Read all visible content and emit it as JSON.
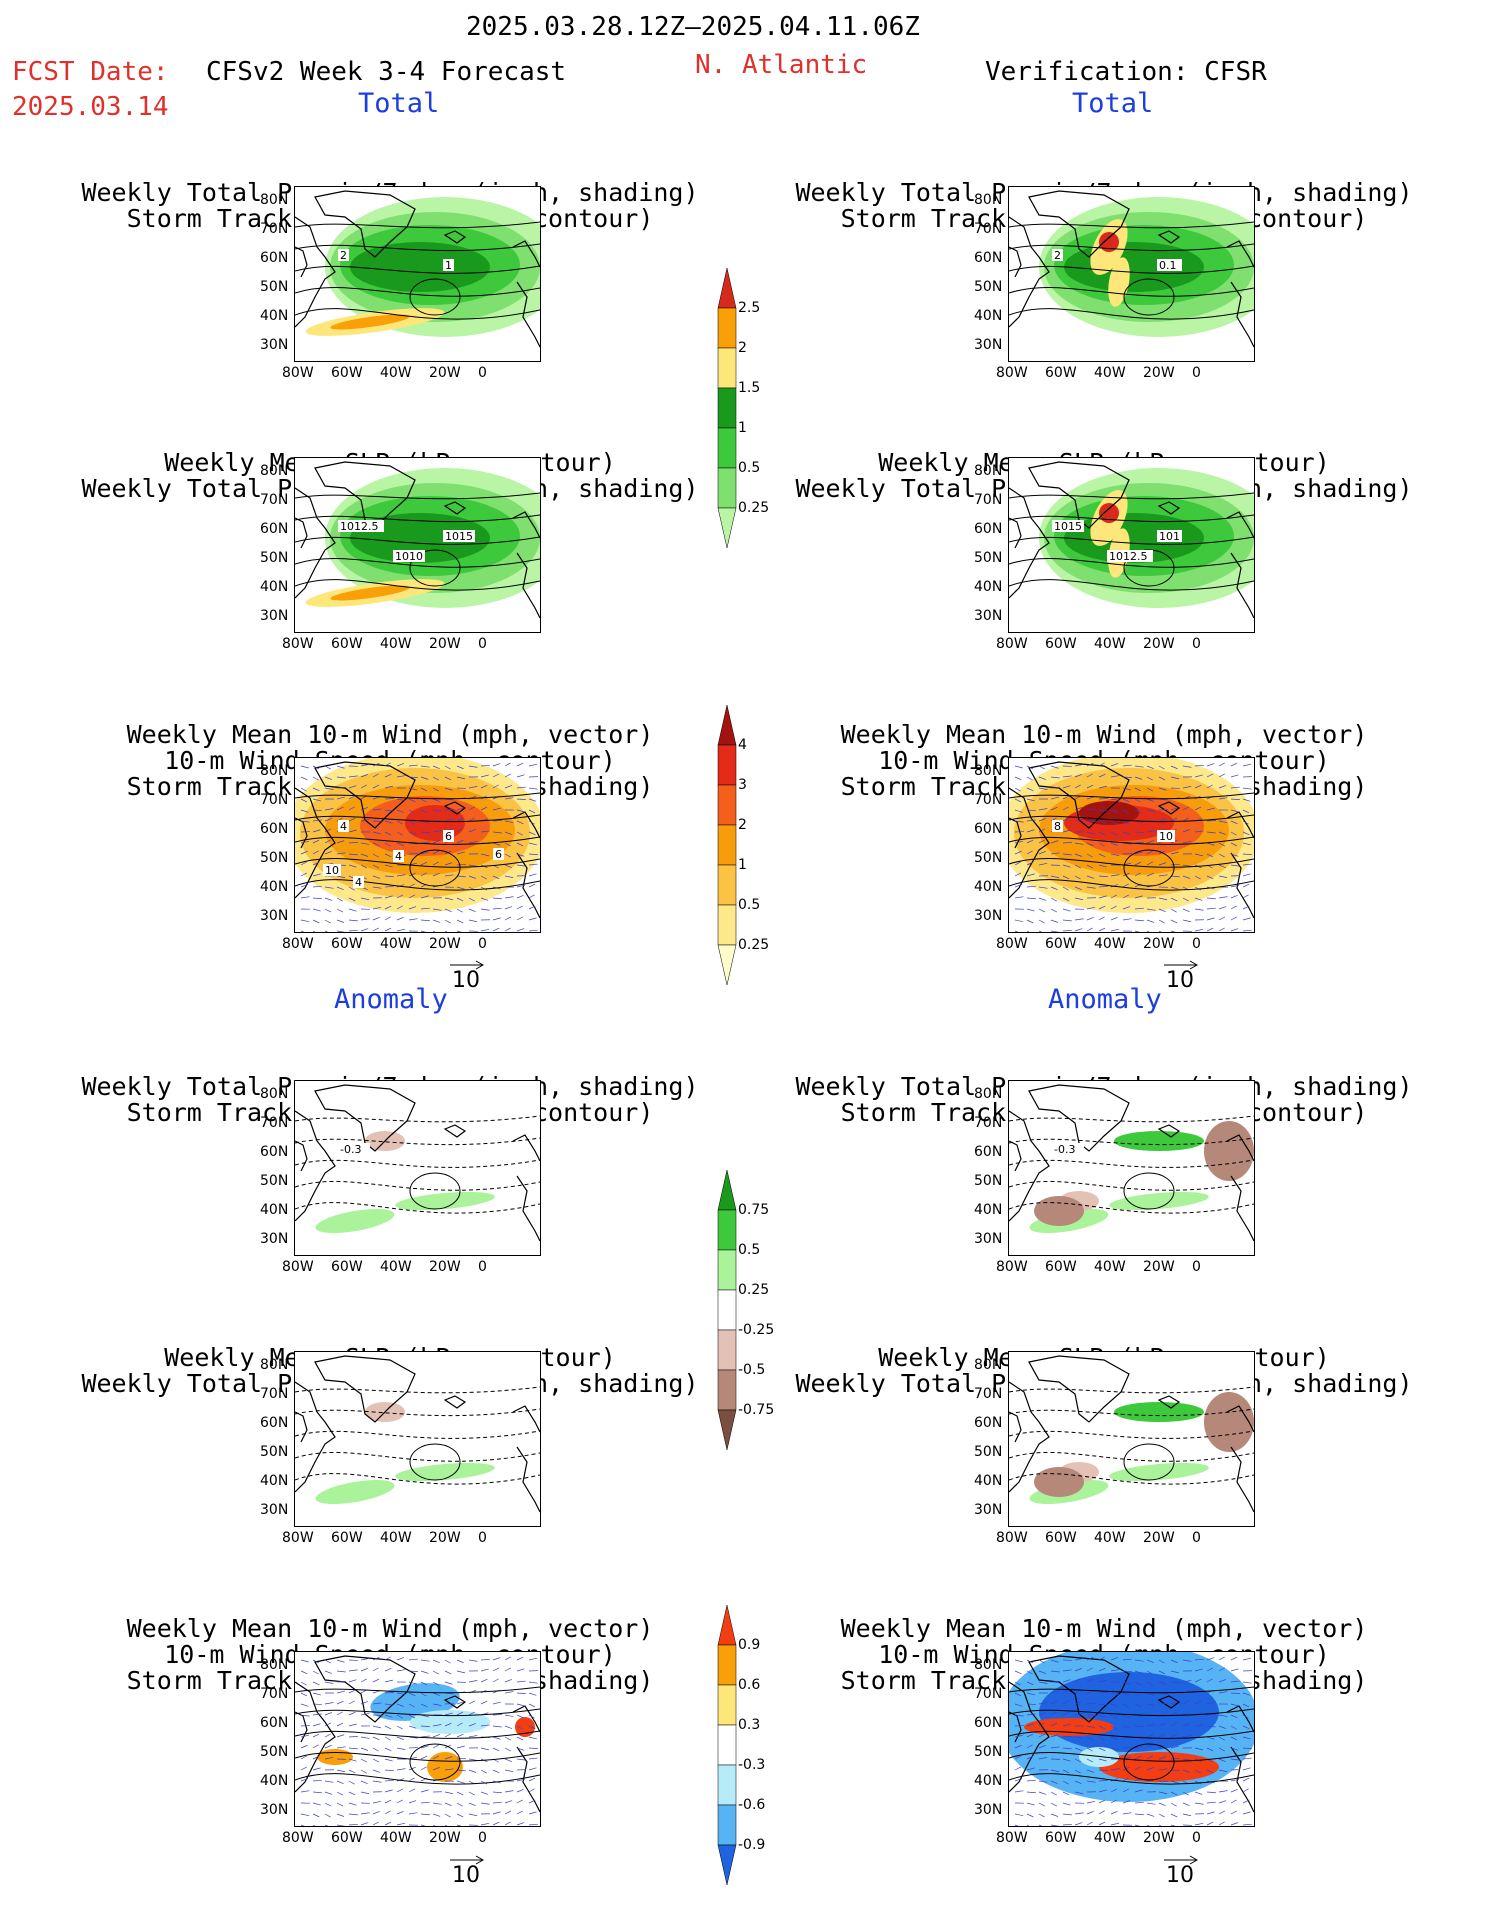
{
  "header": {
    "date_range": "2025.03.28.12Z–2025.04.11.06Z",
    "fcst_label": "FCST Date:",
    "fcst_date": "2025.03.14",
    "model": "CFSv2 Week 3-4 Forecast",
    "region": "N. Atlantic",
    "verification": "Verification: CFSR"
  },
  "sections": {
    "total": "Total",
    "anomaly": "Anomaly"
  },
  "panel_titles": {
    "precip_track": [
      "Weekly Total Precip/7-day (inch, shading)",
      "Storm Track Density/7-day (contour)"
    ],
    "slp_precip": [
      "Weekly Mean SLP (hPa, contour)",
      "Weekly Total Precip/7-day (inch, shading)"
    ],
    "wind_track": [
      "Weekly Mean 10-m Wind (mph, vector)",
      "10-m Wind Speed (mph, contour)",
      "Storm Track Density/7-day (shading)"
    ]
  },
  "axes": {
    "lat_labels": [
      "80N",
      "70N",
      "60N",
      "50N",
      "40N",
      "30N"
    ],
    "lon_labels": [
      "80W",
      "60W",
      "40W",
      "20W",
      "0"
    ]
  },
  "vector_ref": "10",
  "contour_labels": {
    "fc_precip_track": [
      "2",
      "1"
    ],
    "fc_slp": [
      "1012.5",
      "1015",
      "1010"
    ],
    "fc_wind": [
      "4",
      "6",
      "4",
      "6",
      "10",
      "4"
    ],
    "fc_anom_precip": [
      "-0.3"
    ],
    "ver_precip_track": [
      "2",
      "0.1"
    ],
    "ver_slp": [
      "1015",
      "101",
      "1012.5"
    ],
    "ver_wind": [
      "8",
      "10"
    ],
    "ver_anom_precip": [
      "-0.3"
    ]
  },
  "colorbars": [
    {
      "labels": [
        "2.5",
        "2",
        "1.5",
        "1",
        "0.5",
        "0.25"
      ],
      "colors": [
        "#d72a1c",
        "#f99f08",
        "#fde77a",
        "#199a1d",
        "#3ec93c",
        "#7fe06f",
        "#b9f5a4"
      ]
    },
    {
      "labels": [
        "4",
        "3",
        "2",
        "1",
        "0.5",
        "0.25"
      ],
      "colors": [
        "#a3130f",
        "#e32b18",
        "#f4601b",
        "#f79d0c",
        "#fbc344",
        "#fde88a",
        "#fffccb"
      ]
    },
    {
      "labels": [
        "0.75",
        "0.5",
        "0.25",
        "-0.25",
        "-0.5",
        "-0.75"
      ],
      "colors": [
        "#199a1d",
        "#3ec93c",
        "#aaf39b",
        "#ffffff",
        "#e3c1b5",
        "#b6887a",
        "#7a4e40"
      ]
    },
    {
      "labels": [
        "0.9",
        "0.6",
        "0.3",
        "-0.3",
        "-0.6",
        "-0.9"
      ],
      "colors": [
        "#f33d12",
        "#f99f08",
        "#fde77a",
        "#ffffff",
        "#b5ecf8",
        "#56b4f4",
        "#1f63e0"
      ]
    }
  ]
}
